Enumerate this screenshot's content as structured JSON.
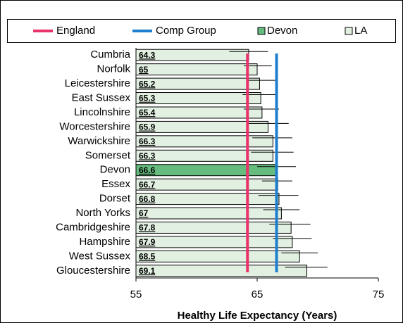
{
  "chart_data": {
    "type": "bar",
    "categories": [
      "Cumbria",
      "Norfolk",
      "Leicestershire",
      "East Sussex",
      "Lincolnshire",
      "Worcestershire",
      "Warwickshire",
      "Somerset",
      "Devon",
      "Essex",
      "Dorset",
      "North Yorks",
      "Cambridgeshire",
      "Hampshire",
      "West Sussex",
      "Gloucestershire"
    ],
    "values": [
      64.3,
      65.0,
      65.2,
      65.3,
      65.4,
      65.9,
      66.3,
      66.3,
      66.6,
      66.7,
      66.8,
      67.0,
      67.8,
      67.9,
      68.5,
      69.1
    ],
    "lower": [
      62.7,
      63.9,
      64.1,
      63.8,
      63.9,
      64.3,
      64.6,
      64.5,
      65.0,
      65.4,
      65.1,
      65.5,
      66.0,
      66.3,
      67.0,
      67.3
    ],
    "upper": [
      65.9,
      66.2,
      66.6,
      66.6,
      66.8,
      67.6,
      67.9,
      68.0,
      68.2,
      67.9,
      68.4,
      68.5,
      69.4,
      69.5,
      70.0,
      70.8
    ],
    "reference_lines": [
      {
        "name": "England",
        "color": "#e8336b",
        "value": 64.2
      },
      {
        "name": "Comp Group",
        "color": "#1f7fcf",
        "value": 66.6
      }
    ],
    "bar_legend": [
      {
        "name": "Devon",
        "color": "#66bb7f"
      },
      {
        "name": "LA",
        "color": "#e2f0e2"
      }
    ],
    "xlim": [
      55,
      75
    ],
    "xticks": [
      55,
      65,
      75
    ],
    "xlabel": "Healthy Life Expectancy (Years)"
  }
}
